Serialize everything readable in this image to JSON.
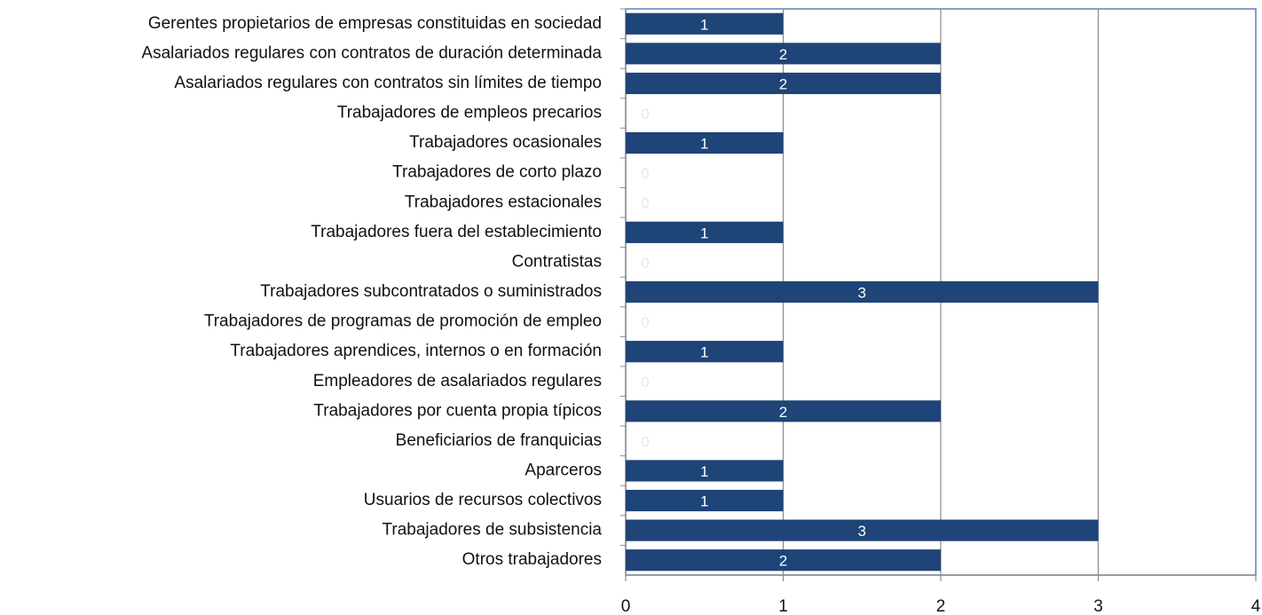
{
  "chart_data": {
    "type": "bar",
    "categories": [
      "Gerentes propietarios  de empresas constituidas  en sociedad",
      "Asalariados regulares con contratos  de duración  determinada",
      "Asalariados regulares con contratos  sin límites de tiempo",
      "Trabajadores  de empleos precarios",
      "Trabajadores  ocasionales",
      "Trabajadores  de corto  plazo",
      "Trabajadores  estacionales",
      "Trabajadores  fuera del establecimiento",
      "Contratistas",
      "Trabajadores  subcontratados  o suministrados",
      "Trabajadores de programas de promoción  de empleo",
      "Trabajadores  aprendices,  internos  o en formación",
      "Empleadores de asalariados regulares",
      "Trabajadores  por cuenta propia  típicos",
      "Beneficiarios  de franquicias",
      "Aparceros",
      "Usuarios  de recursos  colectivos",
      "Trabajadores  de subsistencia",
      "Otros trabajadores"
    ],
    "values": [
      1,
      2,
      2,
      0,
      1,
      0,
      0,
      1,
      0,
      3,
      0,
      1,
      0,
      2,
      0,
      1,
      1,
      3,
      2
    ],
    "color": "#1e4478",
    "xlim": [
      0,
      4
    ],
    "xticks": [
      0,
      1,
      2,
      3,
      4
    ],
    "grid": true
  }
}
